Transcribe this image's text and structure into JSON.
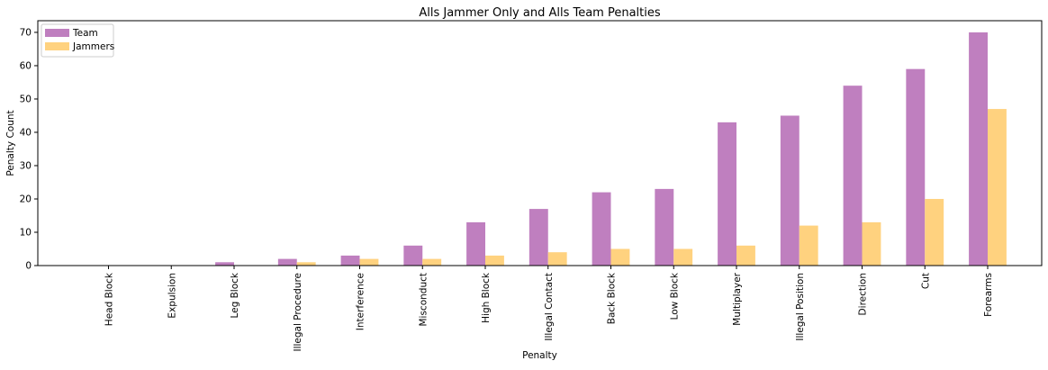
{
  "chart_data": {
    "type": "bar",
    "title": "Alls Jammer Only and Alls Team Penalties",
    "xlabel": "Penalty",
    "ylabel": "Penalty Count",
    "categories": [
      "Head Block",
      "Expulsion",
      "Leg Block",
      "Illegal Procedure",
      "Interference",
      "Misconduct",
      "High Block",
      "Illegal Contact",
      "Back Block",
      "Low Block",
      "Multiplayer",
      "Illegal Position",
      "Direction",
      "Cut",
      "Forearms"
    ],
    "series": [
      {
        "name": "Team",
        "color": "#bf7fbf",
        "values": [
          0,
          0,
          1,
          2,
          3,
          6,
          13,
          17,
          22,
          23,
          43,
          45,
          54,
          59,
          70
        ]
      },
      {
        "name": "Jammers",
        "color": "#ffd27f",
        "values": [
          0,
          0,
          0,
          1,
          2,
          2,
          3,
          4,
          5,
          5,
          6,
          12,
          13,
          20,
          47
        ]
      }
    ],
    "ylim": [
      0,
      73.5
    ],
    "yticks": [
      0,
      10,
      20,
      30,
      40,
      50,
      60,
      70
    ],
    "grid": false,
    "legend_position": "top-left"
  }
}
